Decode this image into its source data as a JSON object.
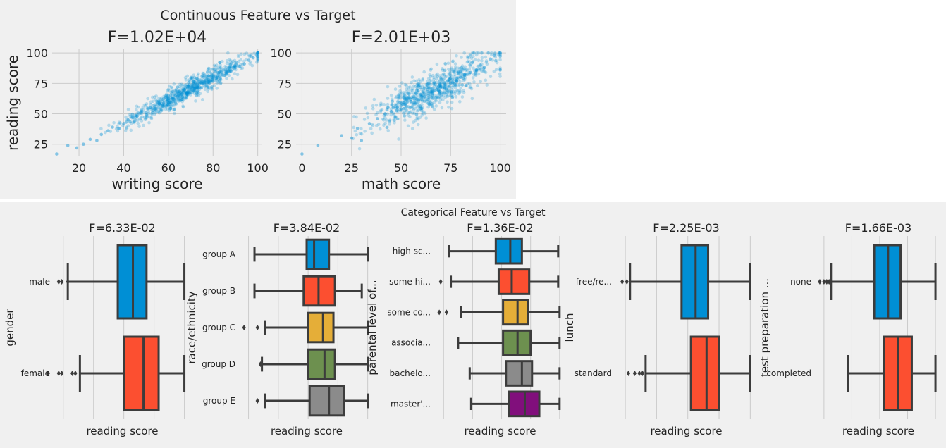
{
  "colors": {
    "background": "#f0f0f0",
    "grid": "#cbcbcb",
    "scatter": "#008fd5",
    "box_edge": "#3c3c3c",
    "palette": [
      "#008fd5",
      "#fc4f30",
      "#e5ae38",
      "#6d904f",
      "#8b8b8b",
      "#810f7c"
    ]
  },
  "chart_data": [
    {
      "type": "scatter",
      "suptitle": "Continuous Feature vs Target",
      "panels": [
        {
          "title": "F=1.02E+04",
          "xlabel": "writing score",
          "ylabel": "reading score",
          "xlim": [
            8,
            102
          ],
          "ylim": [
            15,
            103
          ],
          "xticks": [
            "20",
            "40",
            "60",
            "80",
            "100"
          ],
          "yticks": [
            "25",
            "50",
            "75",
            "100"
          ],
          "relation": {
            "slope": 0.95,
            "intercept": 4,
            "noise_sd": 4.3
          },
          "x": [
            10,
            15,
            19,
            22,
            25,
            28,
            30,
            33,
            35,
            38,
            40,
            42,
            44,
            46,
            48,
            50,
            52,
            54,
            56,
            58,
            60,
            62,
            64,
            66,
            68,
            70,
            72,
            74,
            76,
            78,
            80,
            82,
            84,
            86,
            88,
            90,
            92,
            94,
            96,
            98,
            100
          ],
          "y": [
            17,
            24,
            22,
            25,
            29,
            28,
            33,
            36,
            39,
            38,
            42,
            45,
            47,
            48,
            52,
            51,
            55,
            56,
            58,
            59,
            61,
            63,
            64,
            66,
            67,
            70,
            71,
            72,
            75,
            76,
            79,
            80,
            82,
            84,
            85,
            88,
            89,
            91,
            94,
            96,
            100
          ]
        },
        {
          "title": "F=2.01E+03",
          "xlabel": "math score",
          "ylabel": "",
          "xlim": [
            -3,
            103
          ],
          "ylim": [
            15,
            103
          ],
          "xticks": [
            "0",
            "25",
            "50",
            "75",
            "100"
          ],
          "yticks": [
            "25",
            "50",
            "75",
            "100"
          ],
          "relation": {
            "slope": 0.8,
            "intercept": 16,
            "noise_sd": 8.2
          },
          "x": [
            0,
            8,
            20,
            25,
            28,
            30,
            34,
            38,
            42,
            45,
            48,
            50,
            52,
            55,
            58,
            60,
            62,
            65,
            68,
            70,
            72,
            75,
            78,
            80,
            82,
            85,
            88,
            90,
            92,
            95,
            97,
            100
          ],
          "y": [
            17,
            24,
            32,
            30,
            38,
            28,
            42,
            46,
            50,
            52,
            55,
            54,
            58,
            60,
            62,
            66,
            64,
            68,
            70,
            72,
            71,
            75,
            77,
            80,
            82,
            84,
            86,
            90,
            88,
            95,
            98,
            100
          ]
        }
      ]
    },
    {
      "type": "box",
      "suptitle": "Categorical Feature vs Target",
      "xlim": [
        15,
        103
      ],
      "panels": [
        {
          "title": "F=6.33E-02",
          "ylabel": "gender",
          "xlabel": "reading score",
          "categories": [
            "male",
            "female"
          ],
          "boxes": [
            {
              "wlo": 23,
              "q1": 56,
              "med": 66,
              "q3": 75,
              "whi": 100,
              "fliers": [
                17,
                19,
                23
              ]
            },
            {
              "wlo": 31,
              "q1": 60,
              "med": 73,
              "q3": 83,
              "whi": 100,
              "fliers": [
                10,
                17,
                19,
                26,
                28
              ]
            }
          ]
        },
        {
          "title": "F=3.84E-02",
          "ylabel": "race/ethnicity",
          "xlabel": "reading score",
          "categories": [
            "group A",
            "group B",
            "group C",
            "group D",
            "group E"
          ],
          "boxes": [
            {
              "wlo": 24,
              "q1": 59,
              "med": 64,
              "q3": 74,
              "whi": 100,
              "fliers": []
            },
            {
              "wlo": 24,
              "q1": 57,
              "med": 67,
              "q3": 78,
              "whi": 96,
              "fliers": []
            },
            {
              "wlo": 31,
              "q1": 60,
              "med": 70,
              "q3": 77,
              "whi": 100,
              "fliers": [
                17,
                26
              ]
            },
            {
              "wlo": 29,
              "q1": 60,
              "med": 71,
              "q3": 78,
              "whi": 100,
              "fliers": [
                28
              ]
            },
            {
              "wlo": 31,
              "q1": 61,
              "med": 74,
              "q3": 84,
              "whi": 100,
              "fliers": [
                26
              ]
            }
          ]
        },
        {
          "title": "F=1.36E-02",
          "ylabel": "parental level of...",
          "xlabel": "reading score",
          "categories": [
            "high sc...",
            "some hi...",
            "some co...",
            "associa...",
            "bachelo...",
            "master'..."
          ],
          "boxes": [
            {
              "wlo": 24,
              "q1": 56,
              "med": 66,
              "q3": 74,
              "whi": 99,
              "fliers": []
            },
            {
              "wlo": 25,
              "q1": 58,
              "med": 67,
              "q3": 79,
              "whi": 99,
              "fliers": [
                18
              ]
            },
            {
              "wlo": 32,
              "q1": 61,
              "med": 71,
              "q3": 78,
              "whi": 100,
              "fliers": [
                17,
                22
              ]
            },
            {
              "wlo": 30,
              "q1": 61,
              "med": 71,
              "q3": 80,
              "whi": 100,
              "fliers": []
            },
            {
              "wlo": 38,
              "q1": 63,
              "med": 74,
              "q3": 81,
              "whi": 100,
              "fliers": []
            },
            {
              "wlo": 39,
              "q1": 65,
              "med": 76,
              "q3": 86,
              "whi": 100,
              "fliers": []
            }
          ]
        },
        {
          "title": "F=2.25E-03",
          "ylabel": "lunch",
          "xlabel": "reading score",
          "categories": [
            "free/re...",
            "standard"
          ],
          "boxes": [
            {
              "wlo": 23,
              "q1": 56,
              "med": 65,
              "q3": 73,
              "whi": 100,
              "fliers": [
                18,
                21
              ]
            },
            {
              "wlo": 33,
              "q1": 62,
              "med": 72,
              "q3": 80,
              "whi": 100,
              "fliers": [
                22,
                26,
                29,
                31
              ]
            }
          ]
        },
        {
          "title": "F=1.66E-03",
          "ylabel": "test preparation ...",
          "xlabel": "reading score",
          "categories": [
            "none",
            "completed"
          ],
          "boxes": [
            {
              "wlo": 25,
              "q1": 56,
              "med": 66,
              "q3": 75,
              "whi": 100,
              "fliers": [
                17,
                20,
                22,
                23,
                24
              ]
            },
            {
              "wlo": 37,
              "q1": 63,
              "med": 73,
              "q3": 83,
              "whi": 100,
              "fliers": []
            }
          ]
        }
      ]
    }
  ]
}
